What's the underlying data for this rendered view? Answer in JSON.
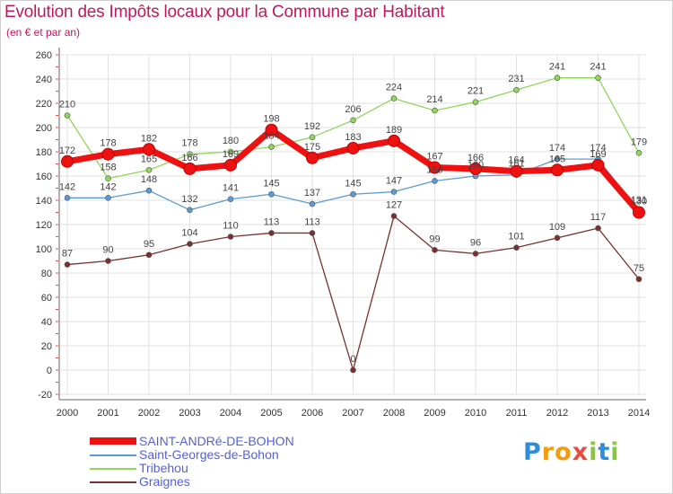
{
  "header": {
    "title": "Evolution des Impôts locaux pour la Commune par Habitant",
    "subtitle": "(en € et par an)"
  },
  "chart_data": {
    "type": "line",
    "title": "Evolution des Impôts locaux pour la Commune par Habitant",
    "subtitle": "(en € et par an)",
    "xlabel": "",
    "ylabel": "",
    "ylim": [
      -20,
      260
    ],
    "yticks": [
      -20,
      0,
      20,
      40,
      60,
      80,
      100,
      120,
      140,
      160,
      180,
      200,
      220,
      240,
      260
    ],
    "categories": [
      "2000",
      "2001",
      "2002",
      "2003",
      "2004",
      "2005",
      "2006",
      "2007",
      "2008",
      "2009",
      "2010",
      "2011",
      "2012",
      "2013",
      "2014"
    ],
    "grid": true,
    "legend_position": "bottom",
    "series": [
      {
        "name": "Tribehou",
        "color": "#8fd65a",
        "values": [
          210,
          158,
          165,
          178,
          180,
          184,
          192,
          206,
          224,
          214,
          221,
          231,
          241,
          241,
          179
        ],
        "labels": [
          "210",
          "158",
          "165",
          "178",
          "180",
          "184",
          "192",
          "206",
          "224",
          "214",
          "221",
          "231",
          "241",
          "241",
          "179"
        ]
      },
      {
        "name": "Saint-Georges-de-Bohon",
        "color": "#5b9bd5",
        "values": [
          142,
          142,
          148,
          132,
          141,
          145,
          137,
          145,
          147,
          156,
          160,
          161,
          174,
          174,
          131
        ],
        "labels": [
          "142",
          "142",
          "148",
          "132",
          "141",
          "145",
          "137",
          "145",
          "147",
          "156",
          "160",
          "161",
          "174",
          "174",
          "131"
        ]
      },
      {
        "name": "Graignes",
        "color": "#7a3030",
        "values": [
          87,
          90,
          95,
          104,
          110,
          113,
          113,
          0,
          127,
          99,
          96,
          101,
          109,
          117,
          75
        ],
        "labels": [
          "87",
          "90",
          "95",
          "104",
          "110",
          "113",
          "113",
          "0",
          "127",
          "99",
          "96",
          "101",
          "109",
          "117",
          "75"
        ]
      },
      {
        "name": "SAINT-ANDRé-DE-BOHON",
        "color": "#ee1111",
        "values": [
          172,
          178,
          182,
          166,
          169,
          198,
          175,
          183,
          189,
          167,
          166,
          164,
          165,
          169,
          130
        ],
        "labels": [
          "172",
          "178",
          "182",
          "166",
          "169",
          "198",
          "175",
          "183",
          "189",
          "167",
          "166",
          "164",
          "165",
          "169",
          "130"
        ]
      }
    ]
  },
  "legend": {
    "items": [
      {
        "label": "SAINT-ANDRé-DE-BOHON",
        "color": "#ee1111"
      },
      {
        "label": "Saint-Georges-de-Bohon",
        "color": "#5b9bd5"
      },
      {
        "label": "Tribehou",
        "color": "#8fd65a"
      },
      {
        "label": "Graignes",
        "color": "#7a3030"
      }
    ]
  },
  "logo": {
    "letters": [
      "P",
      "r",
      "o",
      "x",
      "i",
      "t",
      "i"
    ],
    "colors": [
      "#2e8fd8",
      "#f39c12",
      "#f39c12",
      "#e74c3c",
      "#8bc34a",
      "#2e8fd8",
      "#8bc34a"
    ]
  }
}
